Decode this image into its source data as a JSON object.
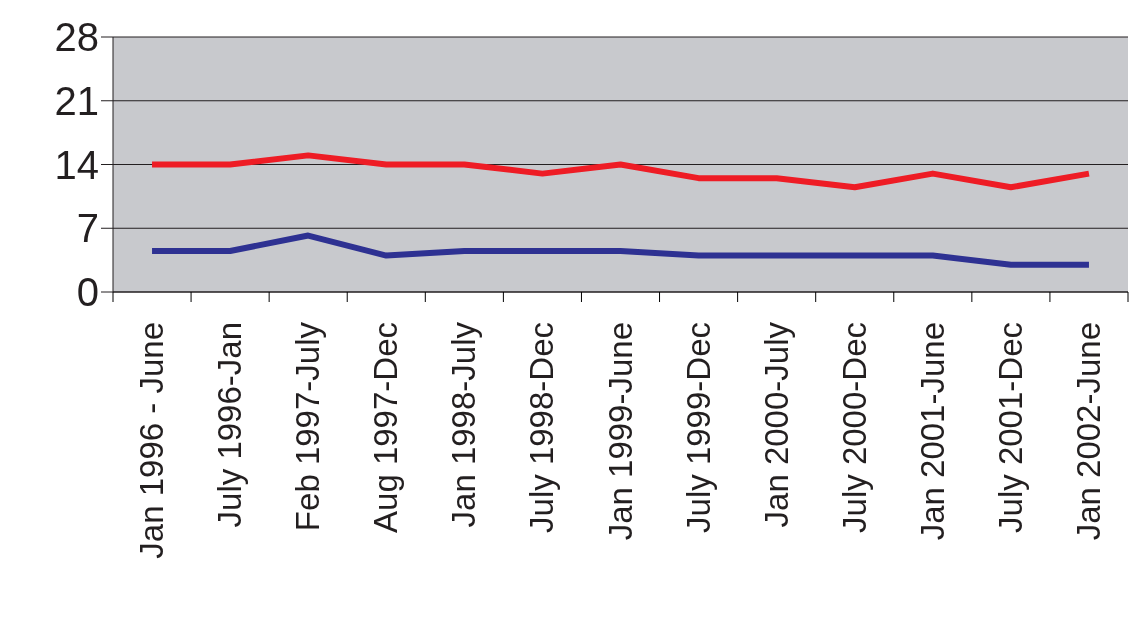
{
  "chart_data": {
    "type": "line",
    "categories": [
      "Jan 1996 - June",
      "July 1996-Jan",
      "Feb 1997-July",
      "Aug 1997-Dec",
      "Jan 1998-July",
      "July 1998-Dec",
      "Jan 1999-June",
      "July 1999-Dec",
      "Jan 2000-July",
      "July 2000-Dec",
      "Jan 2001-June",
      "July 2001-Dec",
      "Jan 2002-June"
    ],
    "series": [
      {
        "color": "#ee1c25",
        "values": [
          14,
          14,
          15,
          14,
          14,
          13,
          14,
          12.5,
          12.5,
          11.5,
          13,
          11.5,
          13
        ]
      },
      {
        "color": "#2e3192",
        "values": [
          4.5,
          4.5,
          6.2,
          4,
          4.5,
          4.5,
          4.5,
          4,
          4,
          4,
          4,
          3,
          3
        ]
      }
    ],
    "ylim": [
      0,
      28
    ],
    "yticks": [
      0,
      7,
      14,
      21,
      28
    ],
    "grid": "y",
    "marker": "none",
    "line_style": "solid",
    "legend": false
  }
}
